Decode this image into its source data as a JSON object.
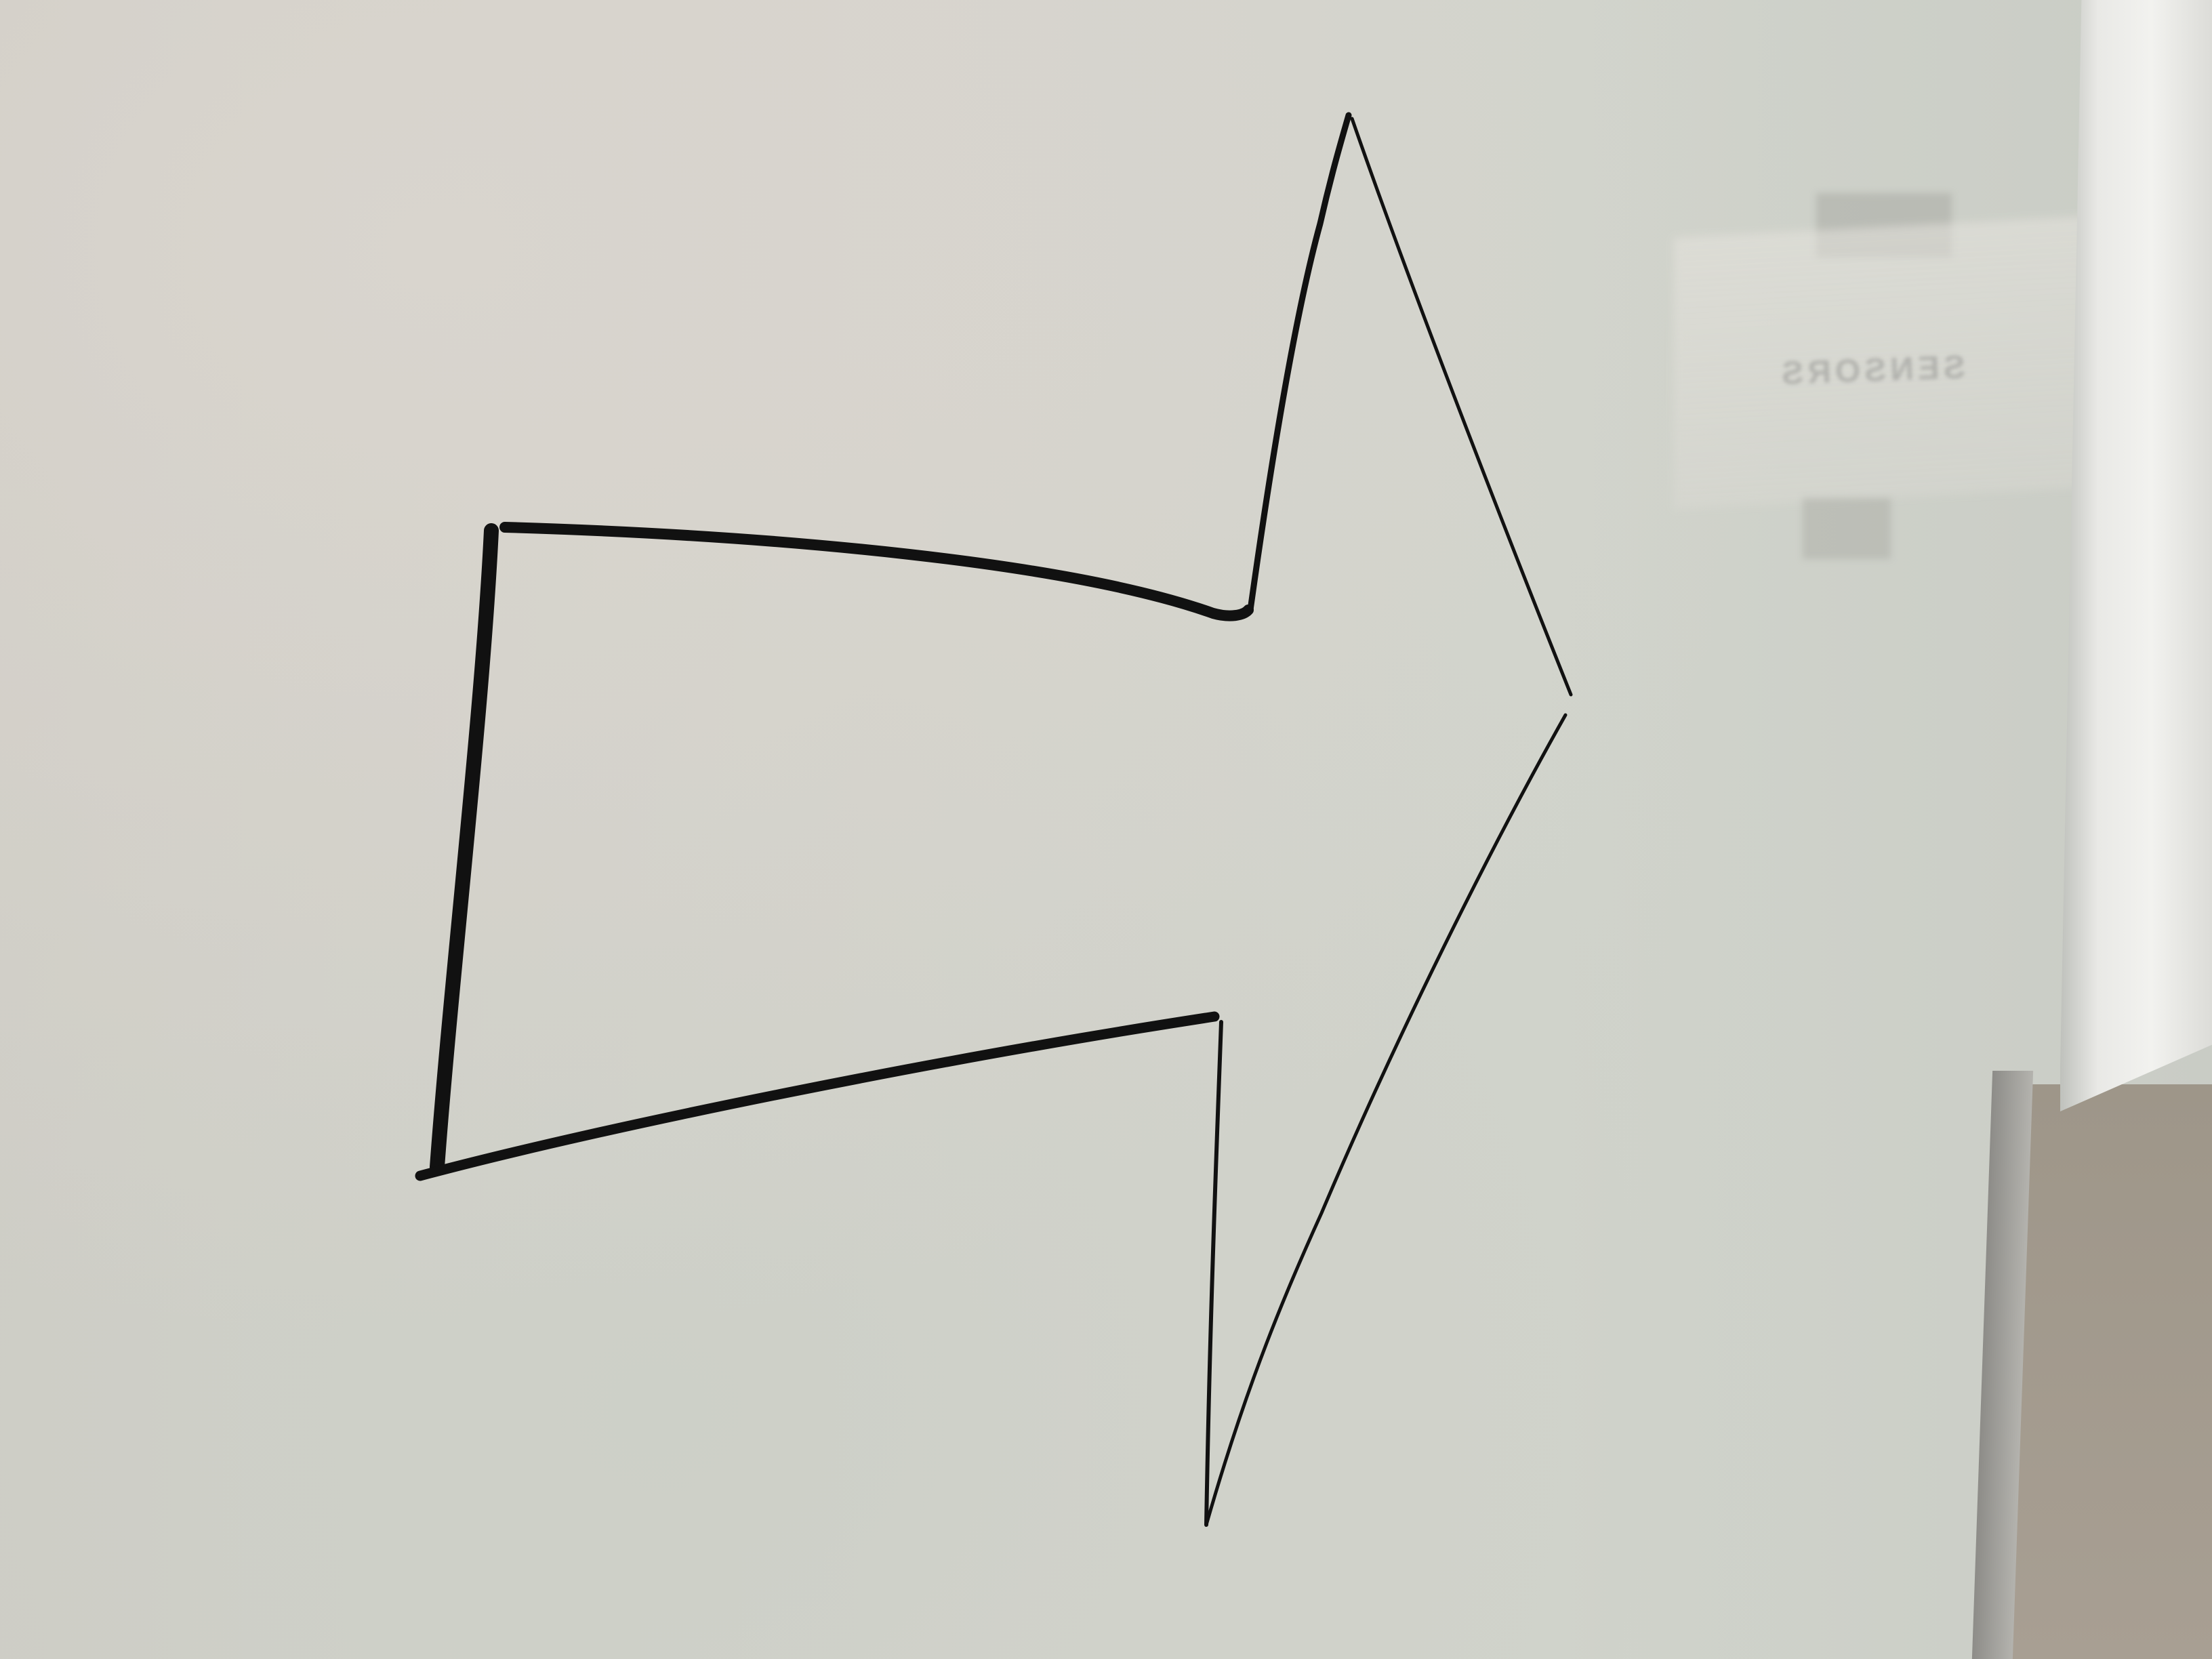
{
  "scene": {
    "subject": "hand-drawn-arrow",
    "arrow_direction": "right",
    "colors": {
      "board": "#d3d3cc",
      "marker": "#111111",
      "frame": "#e8e8e5",
      "wall": "#a39a8e"
    },
    "reflection_text": "SENSORS"
  }
}
